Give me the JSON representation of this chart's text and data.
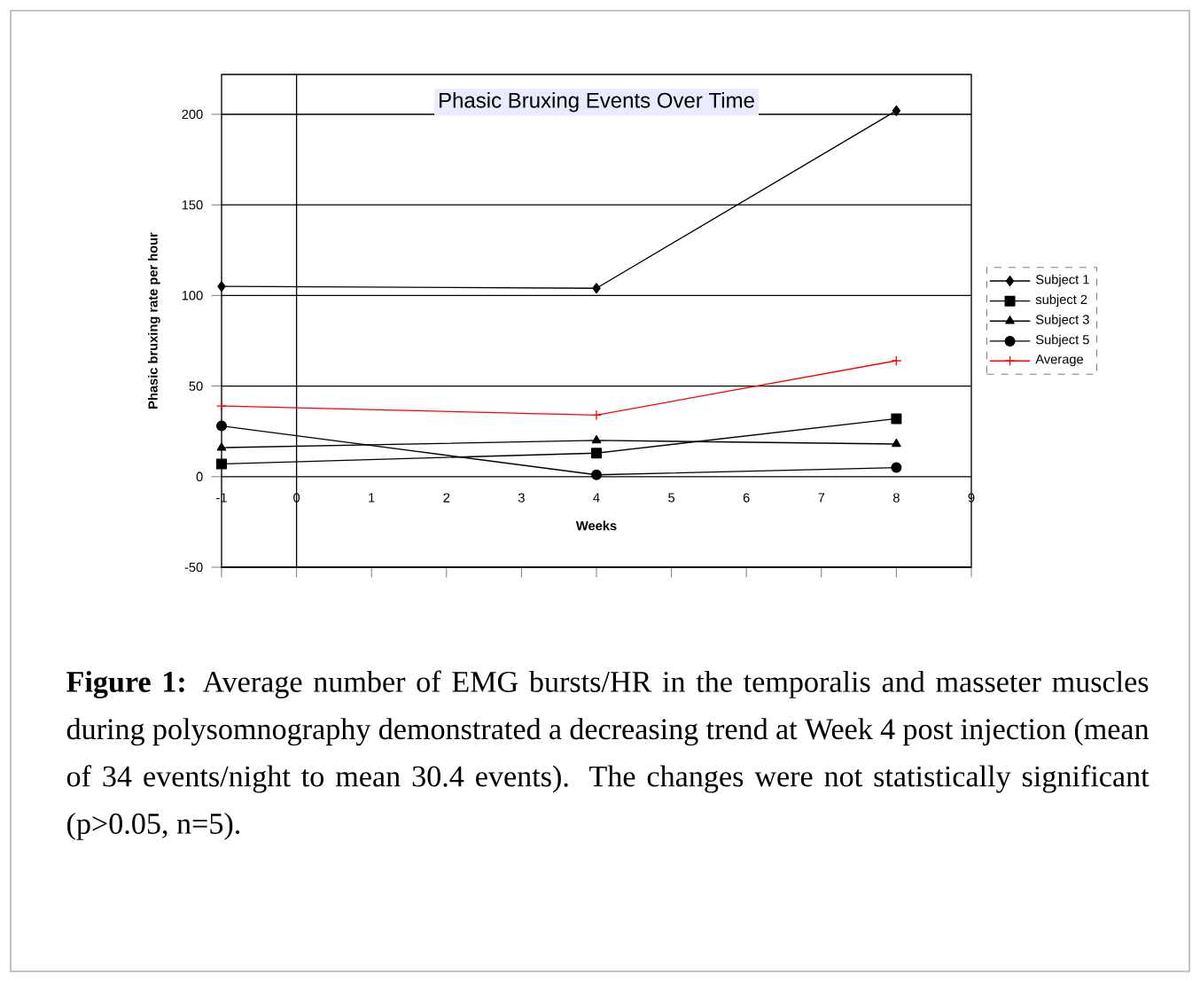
{
  "chart_data": {
    "type": "line",
    "title": "Phasic Bruxing Events Over Time",
    "xlabel": "Weeks",
    "ylabel": "Phasic bruxing rate per hour",
    "x": [
      -1,
      4,
      8
    ],
    "series": [
      {
        "name": "Subject 1",
        "color": "#000000",
        "marker": "diamond",
        "values": [
          105,
          104,
          202
        ]
      },
      {
        "name": "subject 2",
        "color": "#000000",
        "marker": "square",
        "values": [
          7,
          13,
          32
        ]
      },
      {
        "name": "Subject 3",
        "color": "#000000",
        "marker": "triangle",
        "values": [
          16,
          20,
          18
        ]
      },
      {
        "name": "Subject 5",
        "color": "#000000",
        "marker": "circle",
        "values": [
          28,
          1,
          5
        ]
      },
      {
        "name": "Average",
        "color": "#ff0000",
        "marker": "cross",
        "values": [
          39,
          34,
          64
        ]
      }
    ],
    "xlim": [
      -1,
      9
    ],
    "xticks": [
      -1,
      0,
      1,
      2,
      3,
      4,
      5,
      6,
      7,
      8,
      9
    ],
    "ylim": [
      -50,
      222
    ],
    "yticks": [
      -50,
      0,
      50,
      100,
      150,
      200
    ],
    "grid": "y",
    "legend": "right",
    "ref_lines": [
      {
        "axis": "x",
        "value": 0
      }
    ],
    "annotations": [
      "**Figure 1:** Average number of EMG bursts/HR in the temporalis and masseter muscles during polysomnography demonstrated a decreasing trend at Week 4 post injection (mean of 34 events/night to mean 30.4 events). The changes were not statistically significant (p>0.05, n=5)."
    ]
  }
}
